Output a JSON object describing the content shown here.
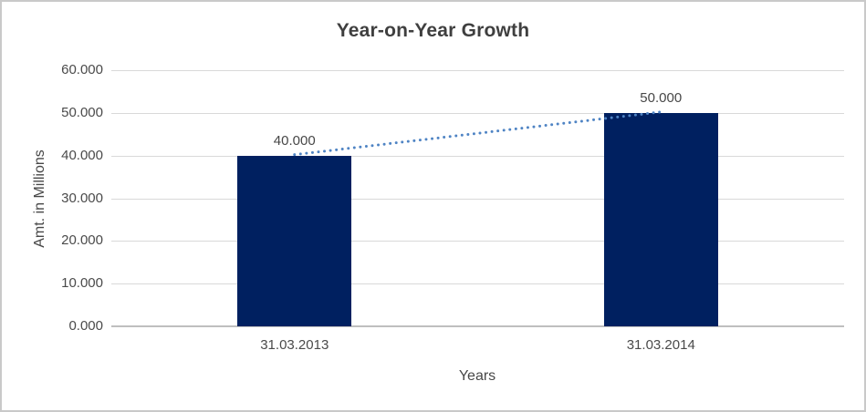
{
  "chart_data": {
    "type": "bar",
    "title": "Year-on-Year Growth",
    "xlabel": "Years",
    "ylabel": "Amt. in Millions",
    "categories": [
      "31.03.2013",
      "31.03.2014"
    ],
    "values": [
      40000,
      50000
    ],
    "value_labels": [
      "40.000",
      "50.000"
    ],
    "ytick_values": [
      0,
      10000,
      20000,
      30000,
      40000,
      50000,
      60000
    ],
    "ytick_labels": [
      "0.000",
      "10.000",
      "20.000",
      "30.000",
      "40.000",
      "50.000",
      "60.000"
    ],
    "ylim": [
      0,
      60000
    ],
    "grid": "horizontal",
    "legend": "none",
    "trendline": {
      "type": "linear",
      "style": "dotted",
      "color": "#4f84c4"
    },
    "colors": {
      "bar": "#002060",
      "gridline": "#d9d9d9",
      "axis_line": "#bfbfbf",
      "chart_border": "#c9c9c9",
      "title_text": "#3f3f3f",
      "tick_text": "#4a4a4a"
    }
  }
}
